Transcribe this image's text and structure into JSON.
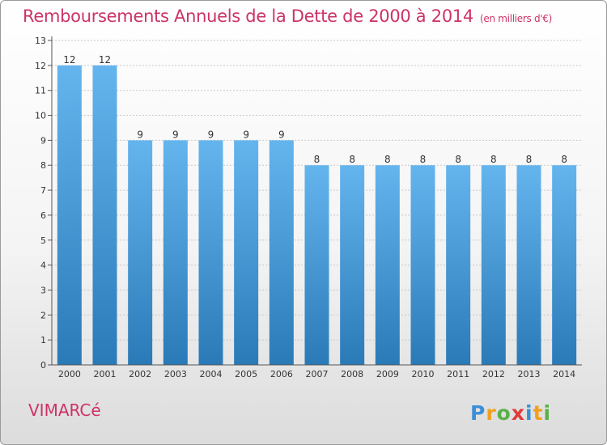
{
  "header": {
    "title": "Remboursements Annuels de la Dette de 2000 à 2014",
    "unit": "(en milliers d'€)"
  },
  "footer": {
    "place": "VIMARCé",
    "logo_text": "Proxiti"
  },
  "colors": {
    "title": "#cc3366",
    "bar_top": "#64b5ee",
    "bar_bottom": "#2a7ab8"
  },
  "chart_data": {
    "type": "bar",
    "title": "Remboursements Annuels de la Dette de 2000 à 2014",
    "xlabel": "",
    "ylabel": "",
    "ylim": [
      0,
      13
    ],
    "yticks": [
      0,
      1,
      2,
      3,
      4,
      5,
      6,
      7,
      8,
      9,
      10,
      11,
      12,
      13
    ],
    "grid": "horizontal dashed",
    "categories": [
      "2000",
      "2001",
      "2002",
      "2003",
      "2004",
      "2005",
      "2006",
      "2007",
      "2008",
      "2009",
      "2010",
      "2011",
      "2012",
      "2013",
      "2014"
    ],
    "values": [
      12,
      12,
      9,
      9,
      9,
      9,
      9,
      8,
      8,
      8,
      8,
      8,
      8,
      8,
      8
    ]
  }
}
